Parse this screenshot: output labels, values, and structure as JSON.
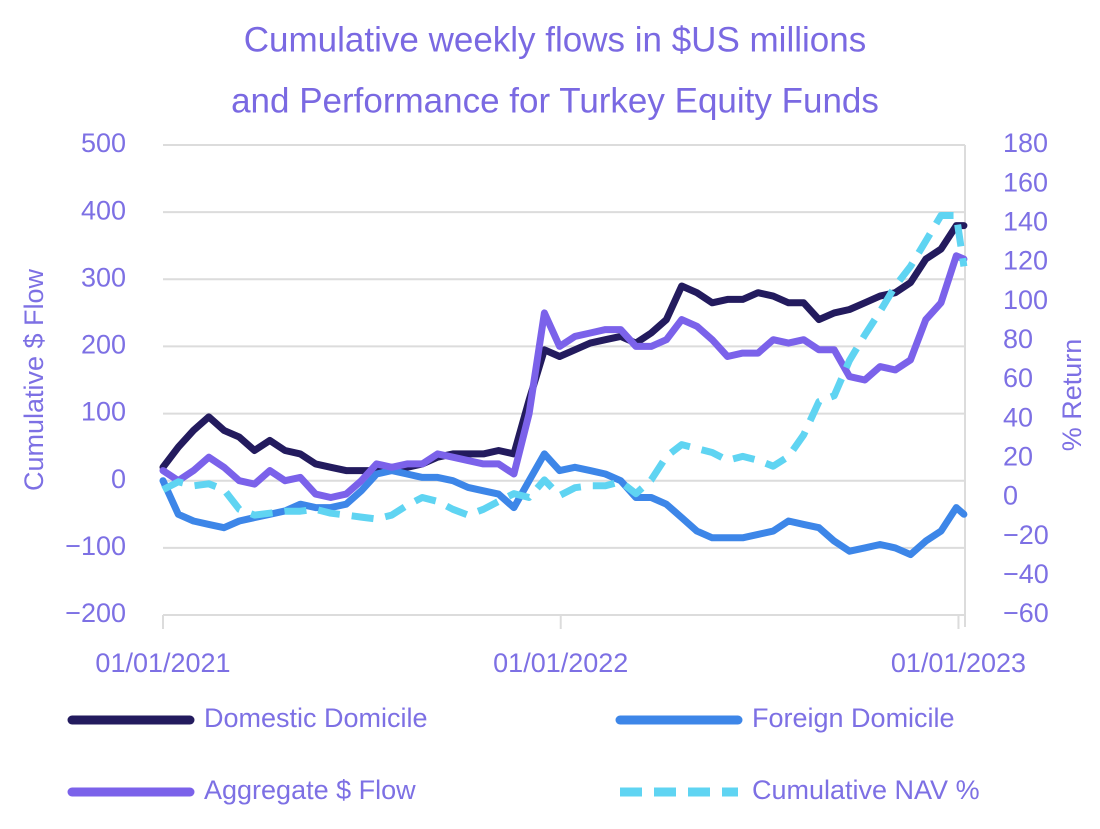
{
  "chart_data": {
    "type": "line",
    "title": "Cumulative weekly flows in $US millions",
    "subtitle": "and Performance for Turkey Equity Funds",
    "y_label": "Cumulative $ Flow",
    "y2_label": "% Return",
    "x": [
      "2021-01-01",
      "2021-01-15",
      "2021-01-29",
      "2021-02-12",
      "2021-02-26",
      "2021-03-12",
      "2021-03-26",
      "2021-04-09",
      "2021-04-23",
      "2021-05-07",
      "2021-05-21",
      "2021-06-04",
      "2021-06-18",
      "2021-07-02",
      "2021-07-16",
      "2021-07-30",
      "2021-08-13",
      "2021-08-27",
      "2021-09-10",
      "2021-09-24",
      "2021-10-08",
      "2021-10-22",
      "2021-11-05",
      "2021-11-19",
      "2021-12-03",
      "2021-12-17",
      "2021-12-31",
      "2022-01-14",
      "2022-01-28",
      "2022-02-11",
      "2022-02-25",
      "2022-03-11",
      "2022-03-25",
      "2022-04-08",
      "2022-04-22",
      "2022-05-06",
      "2022-05-20",
      "2022-06-03",
      "2022-06-17",
      "2022-07-01",
      "2022-07-15",
      "2022-07-29",
      "2022-08-12",
      "2022-08-26",
      "2022-09-09",
      "2022-09-23",
      "2022-10-07",
      "2022-10-21",
      "2022-11-04",
      "2022-11-18",
      "2022-12-02",
      "2022-12-16",
      "2022-12-30",
      "2023-01-06"
    ],
    "xlim": [
      "2021-01-01",
      "2023-01-07"
    ],
    "xticks": [
      {
        "value": "2021-01-01",
        "label": "01/01/2021"
      },
      {
        "value": "2022-01-01",
        "label": "01/01/2022"
      },
      {
        "value": "2023-01-01",
        "label": "01/01/2023"
      }
    ],
    "ylim": [
      -200,
      500
    ],
    "yticks": [
      {
        "value": -200,
        "label": "−200"
      },
      {
        "value": -100,
        "label": "−100"
      },
      0,
      100,
      200,
      300,
      400,
      500
    ],
    "y2lim": [
      -60,
      180
    ],
    "y2ticks": [
      {
        "value": -60,
        "label": "−60"
      },
      {
        "value": -40,
        "label": "−40"
      },
      {
        "value": -20,
        "label": "−20"
      },
      0,
      20,
      40,
      60,
      80,
      100,
      120,
      140,
      160,
      180
    ],
    "grid": true,
    "legend": "bottom",
    "series": [
      {
        "name": "Domestic Domicile",
        "color": "#231b5e",
        "values": [
          20,
          50,
          75,
          95,
          75,
          65,
          45,
          60,
          45,
          40,
          25,
          20,
          15,
          15,
          15,
          20,
          20,
          25,
          35,
          40,
          40,
          40,
          45,
          40,
          120,
          195,
          185,
          195,
          205,
          210,
          215,
          205,
          220,
          240,
          290,
          280,
          265,
          270,
          270,
          280,
          275,
          265,
          265,
          240,
          250,
          255,
          265,
          275,
          280,
          295,
          330,
          345,
          380,
          380
        ]
      },
      {
        "name": "Foreign Domicile",
        "color": "#3d86e8",
        "values": [
          0,
          -50,
          -60,
          -65,
          -70,
          -60,
          -55,
          -50,
          -45,
          -35,
          -40,
          -40,
          -35,
          -15,
          10,
          15,
          10,
          5,
          5,
          0,
          -10,
          -15,
          -20,
          -40,
          0,
          40,
          15,
          20,
          15,
          10,
          0,
          -25,
          -25,
          -35,
          -55,
          -75,
          -85,
          -85,
          -85,
          -80,
          -75,
          -60,
          -65,
          -70,
          -90,
          -105,
          -100,
          -95,
          -100,
          -110,
          -90,
          -75,
          -40,
          -50
        ]
      },
      {
        "name": "Aggregate $ Flow",
        "color": "#7b62ea",
        "values": [
          15,
          0,
          15,
          35,
          20,
          0,
          -5,
          15,
          0,
          5,
          -20,
          -25,
          -20,
          0,
          25,
          20,
          25,
          25,
          40,
          35,
          30,
          25,
          25,
          10,
          100,
          250,
          200,
          215,
          220,
          225,
          225,
          200,
          200,
          210,
          240,
          230,
          210,
          185,
          190,
          190,
          210,
          205,
          210,
          195,
          195,
          155,
          150,
          170,
          165,
          180,
          240,
          265,
          335,
          330
        ]
      },
      {
        "name": "Cumulative NAV %",
        "color": "#5fd4f2",
        "axis": "y2",
        "dashed": true,
        "values": [
          4,
          8,
          6,
          7,
          4,
          -6,
          -9,
          -8,
          -7,
          -7,
          -6,
          -8,
          -9,
          -10,
          -11,
          -9,
          -4,
          0,
          -2,
          -6,
          -9,
          -6,
          -2,
          2,
          0,
          9,
          1,
          5,
          6,
          6,
          8,
          2,
          9,
          21,
          27,
          25,
          23,
          19,
          21,
          19,
          16,
          21,
          32,
          49,
          52,
          70,
          83,
          95,
          108,
          118,
          131,
          144,
          144,
          118
        ]
      }
    ]
  }
}
